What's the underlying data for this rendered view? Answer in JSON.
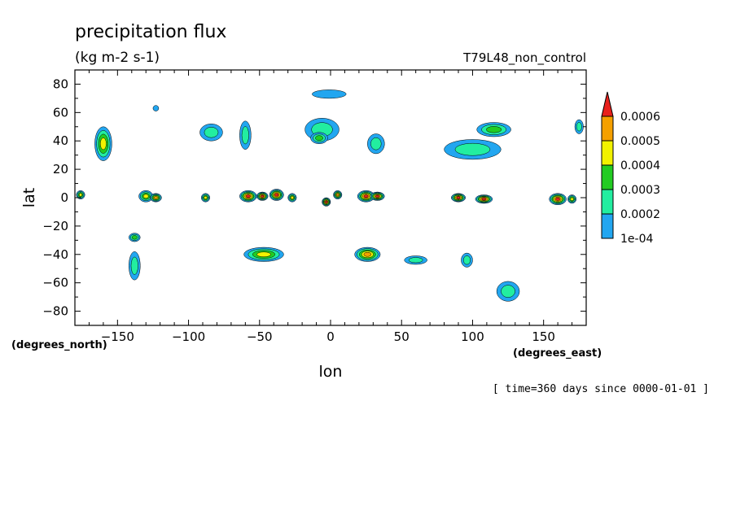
{
  "chart_data": {
    "type": "contour",
    "title": "precipitation flux",
    "units": "(kg m-2 s-1)",
    "dataset": "T79L48_non_control",
    "xlabel": "lon",
    "ylabel": "lat",
    "x_units": "(degrees_east)",
    "y_units": "(degrees_north)",
    "xlim": [
      -180,
      180
    ],
    "ylim": [
      -90,
      90
    ],
    "x_ticks": [
      -150,
      -100,
      -50,
      0,
      50,
      100,
      150
    ],
    "x_tick_labels": [
      "−150",
      "−100",
      "−50",
      "0",
      "50",
      "100",
      "150"
    ],
    "y_ticks": [
      80,
      60,
      40,
      20,
      0,
      -20,
      -40,
      -60,
      -80
    ],
    "y_tick_labels": [
      "80",
      "60",
      "40",
      "20",
      "0",
      "−20",
      "−40",
      "−60",
      "−80"
    ],
    "time_note": "[ time=360 days since 0000-01-01 ]",
    "levels": [
      0.0001,
      0.0002,
      0.0003,
      0.0004,
      0.0005,
      0.0006
    ],
    "colorbar": {
      "labels": [
        "0.0006",
        "0.0005",
        "0.0004",
        "0.0003",
        "0.0002",
        "1e-04"
      ],
      "colors": [
        "#e8201c",
        "#f5a000",
        "#f2f200",
        "#22cc22",
        "#22eea0",
        "#22a6f0"
      ],
      "extend": "max"
    },
    "features": [
      {
        "lon": -160,
        "lat": 38,
        "dlon": 6,
        "dlat": 12,
        "level": 0.00045
      },
      {
        "lon": -123,
        "lat": 63,
        "dlon": 2,
        "dlat": 2,
        "level": 0.0001
      },
      {
        "lon": -84,
        "lat": 46,
        "dlon": 8,
        "dlat": 6,
        "level": 0.0002
      },
      {
        "lon": -60,
        "lat": 44,
        "dlon": 4,
        "dlat": 10,
        "level": 0.0002
      },
      {
        "lon": -6,
        "lat": 48,
        "dlon": 12,
        "dlat": 8,
        "level": 0.0002
      },
      {
        "lon": -8,
        "lat": 42,
        "dlon": 6,
        "dlat": 4,
        "level": 0.0003
      },
      {
        "lon": -1,
        "lat": 73,
        "dlon": 12,
        "dlat": 3,
        "level": 0.0001
      },
      {
        "lon": 32,
        "lat": 38,
        "dlon": 6,
        "dlat": 7,
        "level": 0.0002
      },
      {
        "lon": 100,
        "lat": 34,
        "dlon": 20,
        "dlat": 7,
        "level": 0.0002
      },
      {
        "lon": 115,
        "lat": 48,
        "dlon": 12,
        "dlat": 5,
        "level": 0.00035
      },
      {
        "lon": 175,
        "lat": 50,
        "dlon": 3,
        "dlat": 5,
        "level": 0.0002
      },
      {
        "lon": -176,
        "lat": 2,
        "dlon": 3,
        "dlat": 3,
        "level": 0.00045
      },
      {
        "lon": -130,
        "lat": 1,
        "dlon": 5,
        "dlat": 4,
        "level": 0.0004
      },
      {
        "lon": -123,
        "lat": 0,
        "dlon": 4,
        "dlat": 3,
        "level": 0.00055
      },
      {
        "lon": -88,
        "lat": 0,
        "dlon": 3,
        "dlat": 3,
        "level": 0.00045
      },
      {
        "lon": -58,
        "lat": 1,
        "dlon": 6,
        "dlat": 4,
        "level": 0.0006
      },
      {
        "lon": -48,
        "lat": 1,
        "dlon": 4,
        "dlat": 3,
        "level": 0.0006
      },
      {
        "lon": -38,
        "lat": 2,
        "dlon": 5,
        "dlat": 4,
        "level": 0.0006
      },
      {
        "lon": -27,
        "lat": 0,
        "dlon": 3,
        "dlat": 3,
        "level": 0.00045
      },
      {
        "lon": -3,
        "lat": -3,
        "dlon": 3,
        "dlat": 3,
        "level": 0.0006
      },
      {
        "lon": 5,
        "lat": 2,
        "dlon": 3,
        "dlat": 3,
        "level": 0.0005
      },
      {
        "lon": 25,
        "lat": 1,
        "dlon": 6,
        "dlat": 4,
        "level": 0.0006
      },
      {
        "lon": 33,
        "lat": 1,
        "dlon": 5,
        "dlat": 3,
        "level": 0.0006
      },
      {
        "lon": 90,
        "lat": 0,
        "dlon": 5,
        "dlat": 3,
        "level": 0.0006
      },
      {
        "lon": 108,
        "lat": -1,
        "dlon": 6,
        "dlat": 3,
        "level": 0.0006
      },
      {
        "lon": 160,
        "lat": -1,
        "dlon": 6,
        "dlat": 4,
        "level": 0.0006
      },
      {
        "lon": 170,
        "lat": -1,
        "dlon": 3,
        "dlat": 3,
        "level": 0.00045
      },
      {
        "lon": -138,
        "lat": -28,
        "dlon": 4,
        "dlat": 3,
        "level": 0.00035
      },
      {
        "lon": -138,
        "lat": -48,
        "dlon": 4,
        "dlat": 10,
        "level": 0.0002
      },
      {
        "lon": -47,
        "lat": -40,
        "dlon": 14,
        "dlat": 5,
        "level": 0.0004
      },
      {
        "lon": 26,
        "lat": -40,
        "dlon": 9,
        "dlat": 5,
        "level": 0.0005
      },
      {
        "lon": 60,
        "lat": -44,
        "dlon": 8,
        "dlat": 3,
        "level": 0.0002
      },
      {
        "lon": 96,
        "lat": -44,
        "dlon": 4,
        "dlat": 5,
        "level": 0.0002
      },
      {
        "lon": 125,
        "lat": -66,
        "dlon": 8,
        "dlat": 7,
        "level": 0.0002
      }
    ]
  }
}
